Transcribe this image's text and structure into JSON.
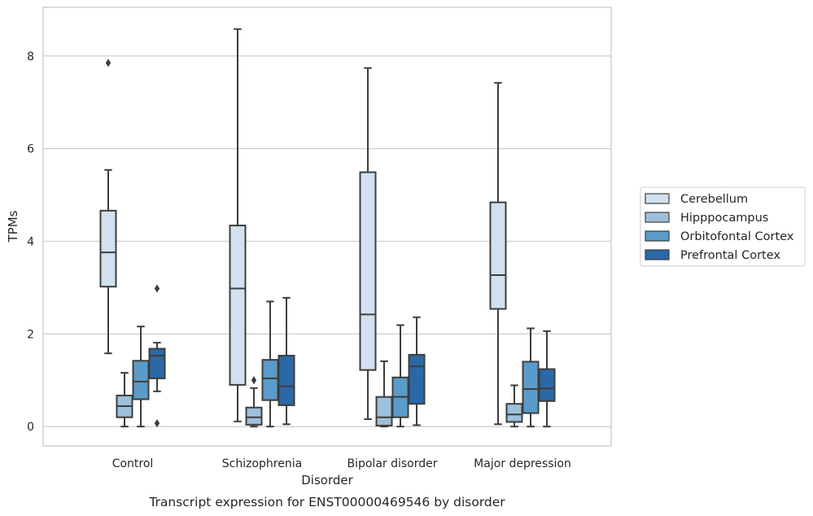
{
  "chart_data": {
    "type": "box",
    "title": "",
    "caption": "Transcript expression for ENST00000469546 by disorder",
    "xlabel": "Disorder",
    "ylabel": "TPMs",
    "ylim": [
      -0.42,
      9.05
    ],
    "yticks": [
      0,
      2,
      4,
      6,
      8
    ],
    "grid": "horizontal",
    "legend_position": "right",
    "categories": [
      "Control",
      "Schizophrenia",
      "Bipolar disorder",
      "Major depression"
    ],
    "series": [
      {
        "name": "Cerebellum",
        "color": "#d1e1f0",
        "boxes": [
          {
            "whisker_low": 1.58,
            "q1": 3.02,
            "median": 3.76,
            "q3": 4.66,
            "whisker_high": 5.54,
            "outliers": [
              7.85
            ]
          },
          {
            "whisker_low": 0.11,
            "q1": 0.9,
            "median": 2.98,
            "q3": 4.34,
            "whisker_high": 8.58,
            "outliers": []
          },
          {
            "whisker_low": 0.16,
            "q1": 1.22,
            "median": 2.42,
            "q3": 5.49,
            "whisker_high": 7.74,
            "outliers": []
          },
          {
            "whisker_low": 0.05,
            "q1": 2.54,
            "median": 3.27,
            "q3": 4.84,
            "whisker_high": 7.42,
            "outliers": []
          }
        ]
      },
      {
        "name": "Hipppocampus",
        "color": "#9dc0dc",
        "boxes": [
          {
            "whisker_low": 0.0,
            "q1": 0.2,
            "median": 0.44,
            "q3": 0.67,
            "whisker_high": 1.16,
            "outliers": []
          },
          {
            "whisker_low": 0.0,
            "q1": 0.04,
            "median": 0.2,
            "q3": 0.41,
            "whisker_high": 0.83,
            "outliers": [
              1.0
            ]
          },
          {
            "whisker_low": 0.0,
            "q1": 0.02,
            "median": 0.2,
            "q3": 0.64,
            "whisker_high": 1.41,
            "outliers": []
          },
          {
            "whisker_low": 0.0,
            "q1": 0.1,
            "median": 0.26,
            "q3": 0.49,
            "whisker_high": 0.89,
            "outliers": []
          }
        ]
      },
      {
        "name": "Orbitofontal Cortex",
        "color": "#5a9bc9",
        "boxes": [
          {
            "whisker_low": 0.0,
            "q1": 0.59,
            "median": 0.97,
            "q3": 1.42,
            "whisker_high": 2.16,
            "outliers": []
          },
          {
            "whisker_low": 0.0,
            "q1": 0.57,
            "median": 1.04,
            "q3": 1.44,
            "whisker_high": 2.7,
            "outliers": []
          },
          {
            "whisker_low": 0.0,
            "q1": 0.2,
            "median": 0.64,
            "q3": 1.06,
            "whisker_high": 2.19,
            "outliers": []
          },
          {
            "whisker_low": 0.0,
            "q1": 0.29,
            "median": 0.81,
            "q3": 1.4,
            "whisker_high": 2.12,
            "outliers": []
          }
        ]
      },
      {
        "name": "Prefrontal Cortex",
        "color": "#2b69a6",
        "boxes": [
          {
            "whisker_low": 0.76,
            "q1": 1.04,
            "median": 1.53,
            "q3": 1.68,
            "whisker_high": 1.81,
            "outliers": [
              2.98,
              0.07
            ]
          },
          {
            "whisker_low": 0.05,
            "q1": 0.46,
            "median": 0.87,
            "q3": 1.53,
            "whisker_high": 2.78,
            "outliers": []
          },
          {
            "whisker_low": 0.03,
            "q1": 0.49,
            "median": 1.3,
            "q3": 1.55,
            "whisker_high": 2.36,
            "outliers": []
          },
          {
            "whisker_low": 0.0,
            "q1": 0.55,
            "median": 0.82,
            "q3": 1.24,
            "whisker_high": 2.06,
            "outliers": []
          }
        ]
      }
    ]
  }
}
